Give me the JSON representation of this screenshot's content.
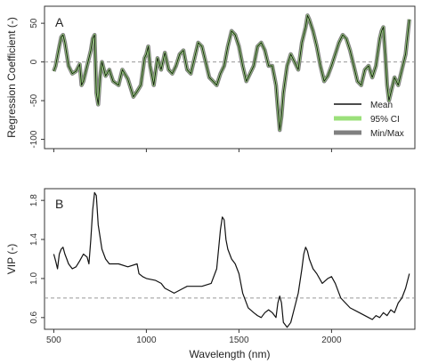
{
  "chart_data": [
    {
      "type": "line",
      "panel_label": "A",
      "xlabel": "",
      "ylabel": "Regression Coefficient (-)",
      "xlim": [
        450,
        2450
      ],
      "ylim": [
        -112,
        72
      ],
      "x_ticks": [
        500,
        1000,
        1500,
        2000
      ],
      "y_ticks": [
        -100,
        -50,
        0,
        50
      ],
      "y_tick_labels": [
        "-100",
        "-50",
        "0",
        "50"
      ],
      "reference_line": 0,
      "grid": false,
      "legend_position": "bottom-right",
      "legend": [
        {
          "name": "Mean",
          "color": "#111111"
        },
        {
          "name": "95% CI",
          "color": "#9be07a"
        },
        {
          "name": "Min/Max",
          "color": "#808080"
        }
      ],
      "series": [
        {
          "name": "Mean",
          "x": [
            500,
            510,
            520,
            530,
            540,
            550,
            560,
            570,
            580,
            600,
            620,
            640,
            650,
            660,
            680,
            700,
            710,
            720,
            730,
            740,
            750,
            760,
            780,
            800,
            820,
            850,
            870,
            900,
            930,
            950,
            970,
            990,
            1000,
            1010,
            1020,
            1040,
            1060,
            1080,
            1100,
            1120,
            1140,
            1160,
            1180,
            1200,
            1220,
            1240,
            1260,
            1280,
            1300,
            1320,
            1340,
            1360,
            1380,
            1400,
            1420,
            1440,
            1460,
            1480,
            1500,
            1520,
            1540,
            1560,
            1580,
            1600,
            1620,
            1640,
            1660,
            1680,
            1700,
            1710,
            1720,
            1730,
            1740,
            1760,
            1780,
            1800,
            1820,
            1840,
            1860,
            1870,
            1880,
            1900,
            1920,
            1940,
            1960,
            1980,
            2000,
            2020,
            2040,
            2060,
            2080,
            2100,
            2120,
            2140,
            2160,
            2180,
            2200,
            2220,
            2240,
            2260,
            2270,
            2280,
            2290,
            2300,
            2310,
            2320,
            2340,
            2360,
            2380,
            2400,
            2420
          ],
          "values": [
            -12,
            -5,
            8,
            20,
            32,
            35,
            25,
            10,
            -5,
            -15,
            -12,
            -3,
            -30,
            -25,
            -5,
            15,
            30,
            35,
            -40,
            -55,
            -20,
            0,
            -18,
            -10,
            -25,
            -30,
            -10,
            -22,
            -45,
            -38,
            -30,
            5,
            10,
            20,
            -5,
            -30,
            5,
            -10,
            12,
            -10,
            -15,
            -5,
            10,
            15,
            -10,
            -15,
            5,
            25,
            20,
            0,
            -20,
            -25,
            -30,
            -15,
            -5,
            20,
            40,
            35,
            20,
            -5,
            -25,
            -15,
            -5,
            20,
            25,
            15,
            -5,
            -5,
            -30,
            -60,
            -88,
            -70,
            -40,
            -5,
            10,
            0,
            -10,
            25,
            45,
            60,
            55,
            40,
            20,
            -5,
            -25,
            -18,
            -5,
            10,
            25,
            35,
            30,
            15,
            -5,
            -25,
            -30,
            -10,
            -5,
            -20,
            -5,
            30,
            40,
            45,
            10,
            -30,
            -50,
            -40,
            -20,
            -30,
            -10,
            10,
            55
          ]
        }
      ]
    },
    {
      "type": "line",
      "panel_label": "B",
      "xlabel": "Wavelength (nm)",
      "ylabel": "VIP (-)",
      "xlim": [
        450,
        2450
      ],
      "ylim": [
        0.48,
        1.92
      ],
      "x_ticks": [
        500,
        1000,
        1500,
        2000
      ],
      "x_tick_labels": [
        "500",
        "1000",
        "1500",
        "2000"
      ],
      "y_ticks": [
        0.6,
        1.0,
        1.4,
        1.8
      ],
      "y_tick_labels": [
        "0.6",
        "1.0",
        "1.4",
        "1.8"
      ],
      "reference_line": 0.8,
      "grid": false,
      "series": [
        {
          "name": "VIP",
          "x": [
            500,
            510,
            520,
            530,
            540,
            550,
            560,
            570,
            580,
            600,
            620,
            640,
            660,
            680,
            690,
            700,
            710,
            720,
            730,
            740,
            760,
            780,
            800,
            850,
            900,
            950,
            960,
            980,
            1000,
            1050,
            1080,
            1100,
            1150,
            1200,
            1220,
            1250,
            1300,
            1350,
            1380,
            1400,
            1410,
            1420,
            1430,
            1440,
            1460,
            1480,
            1500,
            1520,
            1550,
            1580,
            1600,
            1620,
            1640,
            1660,
            1680,
            1700,
            1710,
            1720,
            1730,
            1740,
            1760,
            1780,
            1800,
            1820,
            1840,
            1850,
            1860,
            1870,
            1880,
            1900,
            1920,
            1950,
            1980,
            2000,
            2020,
            2050,
            2100,
            2150,
            2200,
            2220,
            2240,
            2260,
            2280,
            2300,
            2320,
            2340,
            2360,
            2380,
            2400,
            2420
          ],
          "values": [
            1.25,
            1.18,
            1.1,
            1.25,
            1.3,
            1.32,
            1.25,
            1.2,
            1.15,
            1.1,
            1.12,
            1.18,
            1.25,
            1.22,
            1.15,
            1.4,
            1.7,
            1.88,
            1.85,
            1.55,
            1.3,
            1.2,
            1.15,
            1.15,
            1.12,
            1.15,
            1.05,
            1.02,
            1.0,
            0.98,
            0.95,
            0.9,
            0.85,
            0.9,
            0.92,
            0.92,
            0.92,
            0.95,
            1.1,
            1.5,
            1.63,
            1.6,
            1.4,
            1.3,
            1.2,
            1.15,
            1.05,
            0.85,
            0.7,
            0.65,
            0.62,
            0.6,
            0.65,
            0.68,
            0.65,
            0.6,
            0.75,
            0.82,
            0.75,
            0.55,
            0.5,
            0.55,
            0.7,
            0.85,
            1.1,
            1.25,
            1.32,
            1.28,
            1.2,
            1.1,
            1.05,
            0.95,
            1.0,
            1.02,
            0.95,
            0.8,
            0.7,
            0.65,
            0.6,
            0.58,
            0.62,
            0.6,
            0.65,
            0.62,
            0.68,
            0.65,
            0.75,
            0.8,
            0.9,
            1.05
          ]
        }
      ]
    }
  ]
}
